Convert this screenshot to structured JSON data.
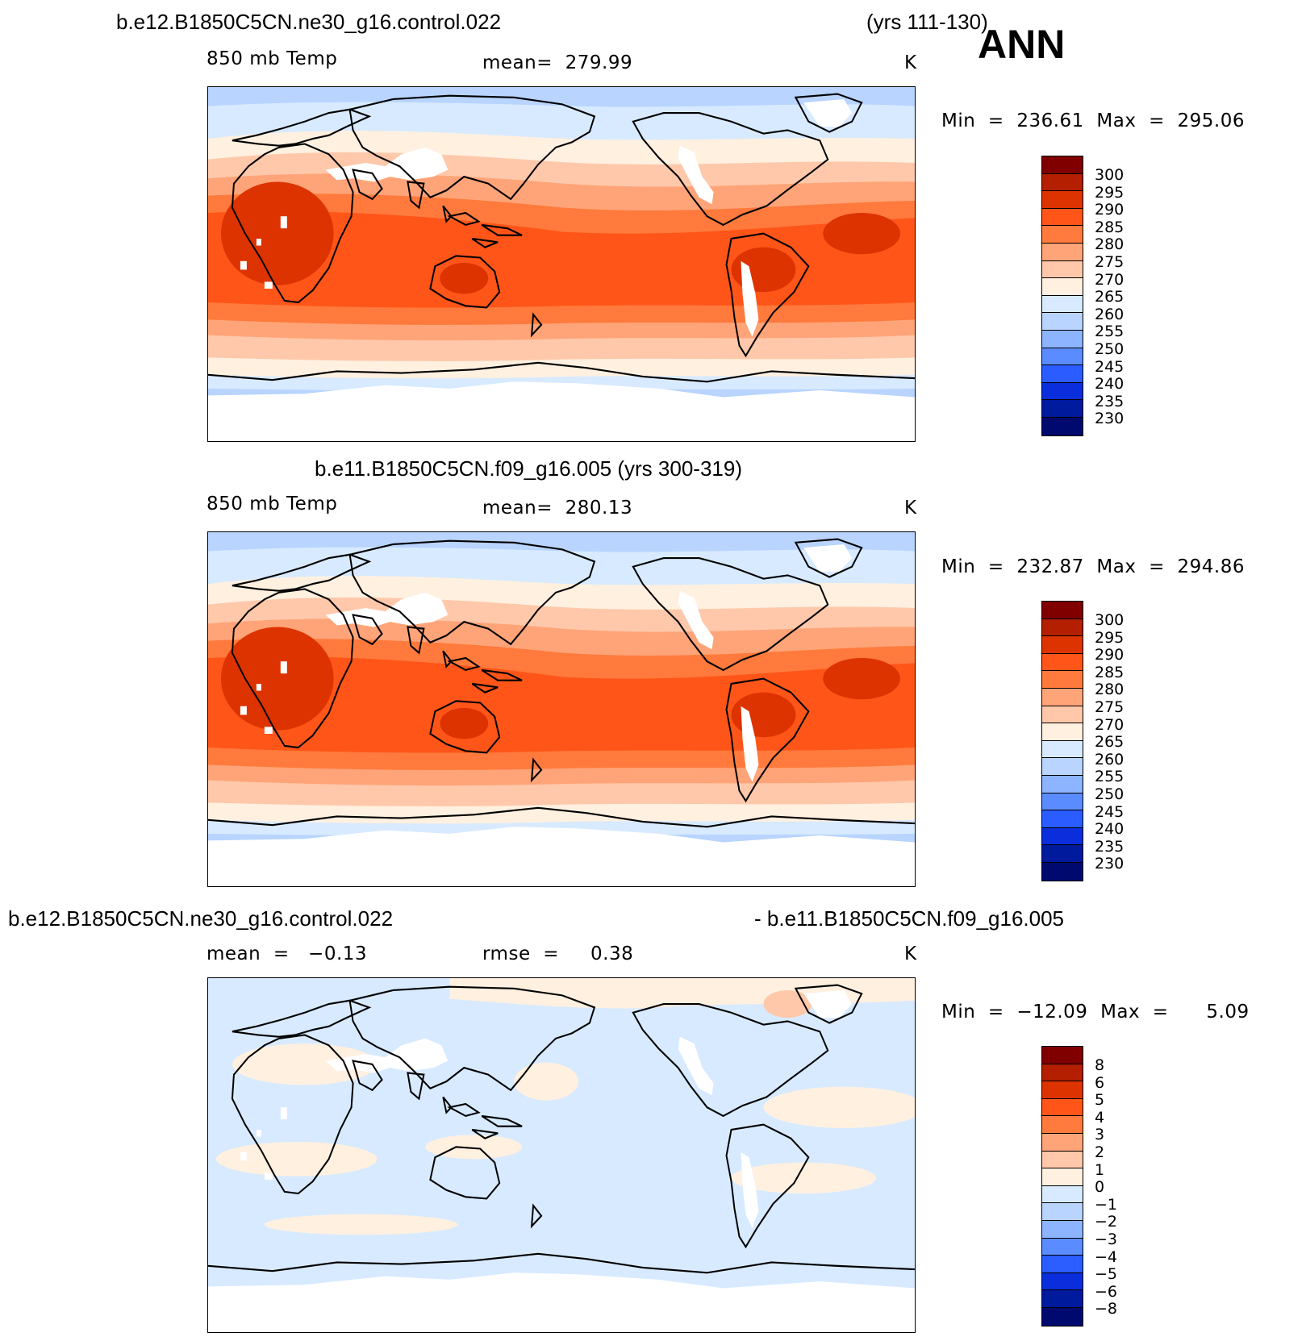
{
  "figure": {
    "season": "ANN",
    "colors": {
      "abs_scale": [
        "#800000",
        "#b31f00",
        "#dd3300",
        "#ff5519",
        "#ff7a3c",
        "#ffa478",
        "#ffc8aa",
        "#fff0e0",
        "#d8eaff",
        "#b8d4ff",
        "#8cb4ff",
        "#5a8cff",
        "#2a5cff",
        "#0a2edc",
        "#001a9e",
        "#000a6e"
      ],
      "diff_scale": [
        "#800000",
        "#b31f00",
        "#dd3300",
        "#ff5519",
        "#ff7a3c",
        "#ffa478",
        "#ffc8aa",
        "#fff0e0",
        "#d8eaff",
        "#b8d4ff",
        "#8cb4ff",
        "#5a8cff",
        "#2a5cff",
        "#0a2edc",
        "#001a9e",
        "#000a6e"
      ]
    }
  },
  "panel1": {
    "case_left": "b.e12.B1850C5CN.ne30_g16.control.022",
    "case_right": "(yrs 111-130)",
    "variable": "850 mb Temp",
    "mean": "mean=  279.99",
    "units": "K",
    "minmax": "Min  =  236.61  Max  =  295.06",
    "ticks": [
      "300",
      "295",
      "290",
      "285",
      "280",
      "275",
      "270",
      "265",
      "260",
      "255",
      "250",
      "245",
      "240",
      "235",
      "230"
    ]
  },
  "panel2": {
    "case_title": "b.e11.B1850C5CN.f09_g16.005 (yrs 300-319)",
    "variable": "850 mb Temp",
    "mean": "mean=  280.13",
    "units": "K",
    "minmax": "Min  =  232.87  Max  =  294.86",
    "ticks": [
      "300",
      "295",
      "290",
      "285",
      "280",
      "275",
      "270",
      "265",
      "260",
      "255",
      "250",
      "245",
      "240",
      "235",
      "230"
    ]
  },
  "panel3": {
    "case_left": "b.e12.B1850C5CN.ne30_g16.control.022",
    "case_right": "- b.e11.B1850C5CN.f09_g16.005",
    "mean": "mean  =   −0.13",
    "rmse": "rmse  =     0.38",
    "units": "K",
    "minmax": "Min  =  −12.09  Max  =      5.09",
    "ticks": [
      "8",
      "6",
      "5",
      "4",
      "3",
      "2",
      "1",
      "0",
      "−1",
      "−2",
      "−3",
      "−4",
      "−5",
      "−6",
      "−8"
    ]
  }
}
